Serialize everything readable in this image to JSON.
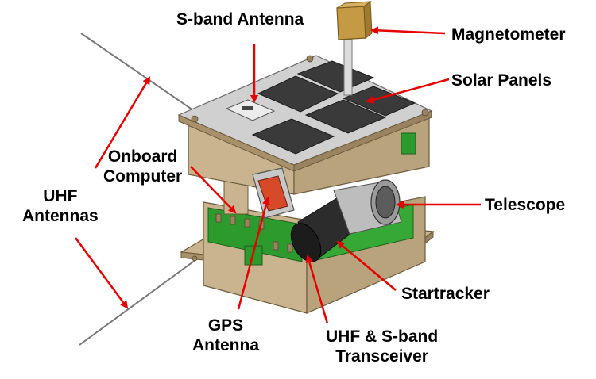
{
  "labels": {
    "s_band_antenna": "S-band Antenna",
    "magnetometer": "Magnetometer",
    "solar_panels": "Solar Panels",
    "onboard_computer": [
      "Onboard",
      "Computer"
    ],
    "uhf_antennas": [
      "UHF",
      "Antennas"
    ],
    "telescope": "Telescope",
    "startracker": "Startracker",
    "gps_antenna": [
      "GPS",
      "Antenna"
    ],
    "uhf_sband_transceiver": [
      "UHF & S-band",
      "Transceiver"
    ]
  },
  "colors": {
    "arrow": "#e60000",
    "frame": "#c9b48f",
    "frame_dark": "#a8916a",
    "panel": "#3a3a3a",
    "pcb": "#2d9a2d",
    "metal": "#b5b5b5",
    "magnetometer": "#c49a45"
  },
  "icons": {
    "satellite": "cubesat-illustration"
  }
}
